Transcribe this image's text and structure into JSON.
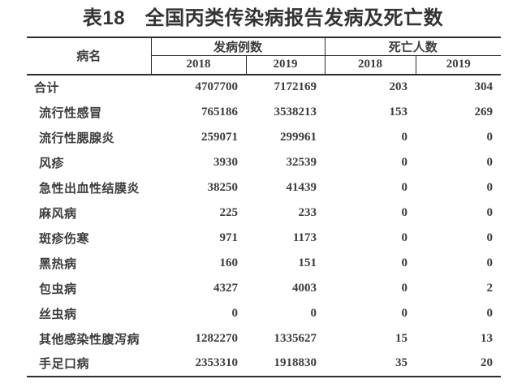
{
  "title": "表18　全国丙类传染病报告发病及死亡数",
  "table": {
    "header": {
      "disease_col": "病名",
      "cases_group": "发病例数",
      "deaths_group": "死亡人数",
      "cases_years": [
        "2018",
        "2019"
      ],
      "deaths_years": [
        "2018",
        "2019"
      ]
    },
    "rows": [
      {
        "name": "合计",
        "values": [
          "4707700",
          "7172169",
          "203",
          "304"
        ]
      },
      {
        "name": "流行性感冒",
        "values": [
          "765186",
          "3538213",
          "153",
          "269"
        ]
      },
      {
        "name": "流行性腮腺炎",
        "values": [
          "259071",
          "299961",
          "0",
          "0"
        ]
      },
      {
        "name": "风疹",
        "values": [
          "3930",
          "32539",
          "0",
          "0"
        ]
      },
      {
        "name": "急性出血性结膜炎",
        "values": [
          "38250",
          "41439",
          "0",
          "0"
        ]
      },
      {
        "name": "麻风病",
        "values": [
          "225",
          "233",
          "0",
          "0"
        ]
      },
      {
        "name": "斑疹伤寒",
        "values": [
          "971",
          "1173",
          "0",
          "0"
        ]
      },
      {
        "name": "黑热病",
        "values": [
          "160",
          "151",
          "0",
          "0"
        ]
      },
      {
        "name": "包虫病",
        "values": [
          "4327",
          "4003",
          "0",
          "2"
        ]
      },
      {
        "name": "丝虫病",
        "values": [
          "0",
          "0",
          "0",
          "0"
        ]
      },
      {
        "name": "其他感染性腹泻病",
        "values": [
          "1282270",
          "1335627",
          "15",
          "13"
        ]
      },
      {
        "name": "手足口病",
        "values": [
          "2353310",
          "1918830",
          "35",
          "20"
        ]
      }
    ]
  },
  "colors": {
    "background": "#ffffff",
    "text": "#3c3c3c",
    "title_text": "#333333",
    "border": "#2b2b2b"
  }
}
